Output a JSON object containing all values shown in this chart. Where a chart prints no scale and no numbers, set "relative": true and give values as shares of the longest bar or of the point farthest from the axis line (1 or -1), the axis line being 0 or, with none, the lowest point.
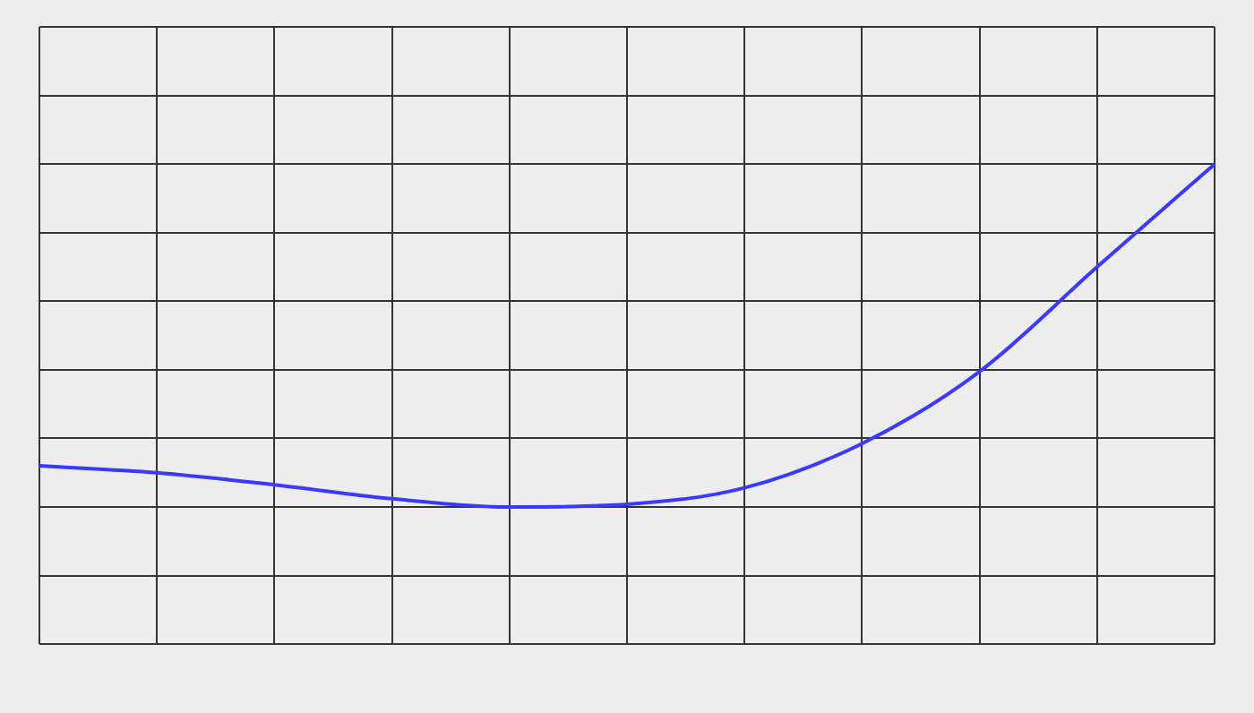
{
  "chart_data": {
    "type": "line",
    "relative": true,
    "categories": [
      null,
      null,
      null,
      null,
      null,
      null,
      null,
      null,
      null,
      null,
      null
    ],
    "series": [
      {
        "color": "#3a3aff",
        "values": [
          0.12,
          0.1,
          0.065,
          0.024,
          0,
          0.008,
          0.056,
          0.185,
          0.395,
          0.7,
          1
        ]
      }
    ],
    "grid": true,
    "legend": false,
    "marker": "none",
    "line_style": "solid"
  }
}
